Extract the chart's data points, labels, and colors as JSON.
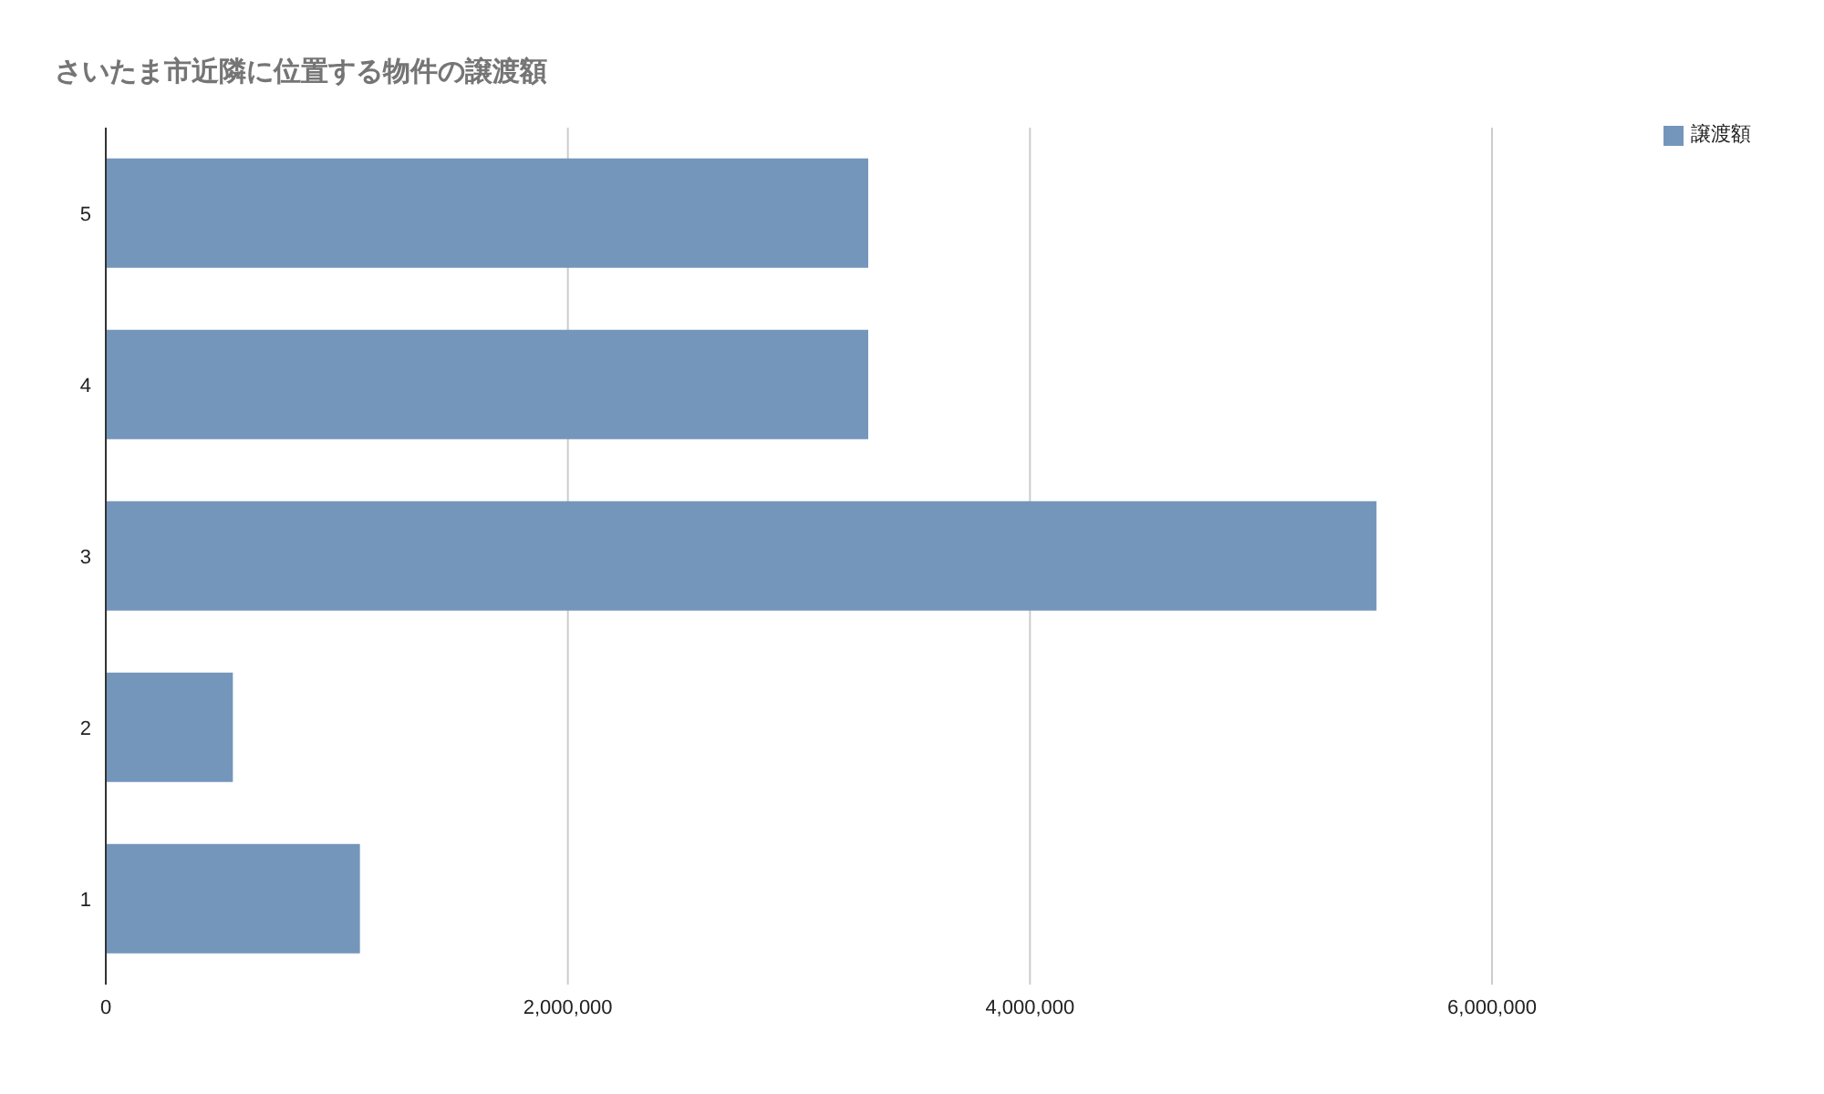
{
  "chart_data": {
    "type": "bar",
    "orientation": "horizontal",
    "title": "さいたま市近隣に位置する物件の譲渡額",
    "categories": [
      "5",
      "4",
      "3",
      "2",
      "1"
    ],
    "series": [
      {
        "name": "譲渡額",
        "color": "#7496bb",
        "values": [
          3300000,
          3300000,
          5500000,
          550000,
          1100000
        ]
      }
    ],
    "xlim": [
      0,
      6000000
    ],
    "xticks": [
      {
        "value": 0,
        "label": "0"
      },
      {
        "value": 2000000,
        "label": "2,000,000"
      },
      {
        "value": 4000000,
        "label": "4,000,000"
      },
      {
        "value": 6000000,
        "label": "6,000,000"
      }
    ],
    "grid": "x",
    "legend": "top right"
  }
}
